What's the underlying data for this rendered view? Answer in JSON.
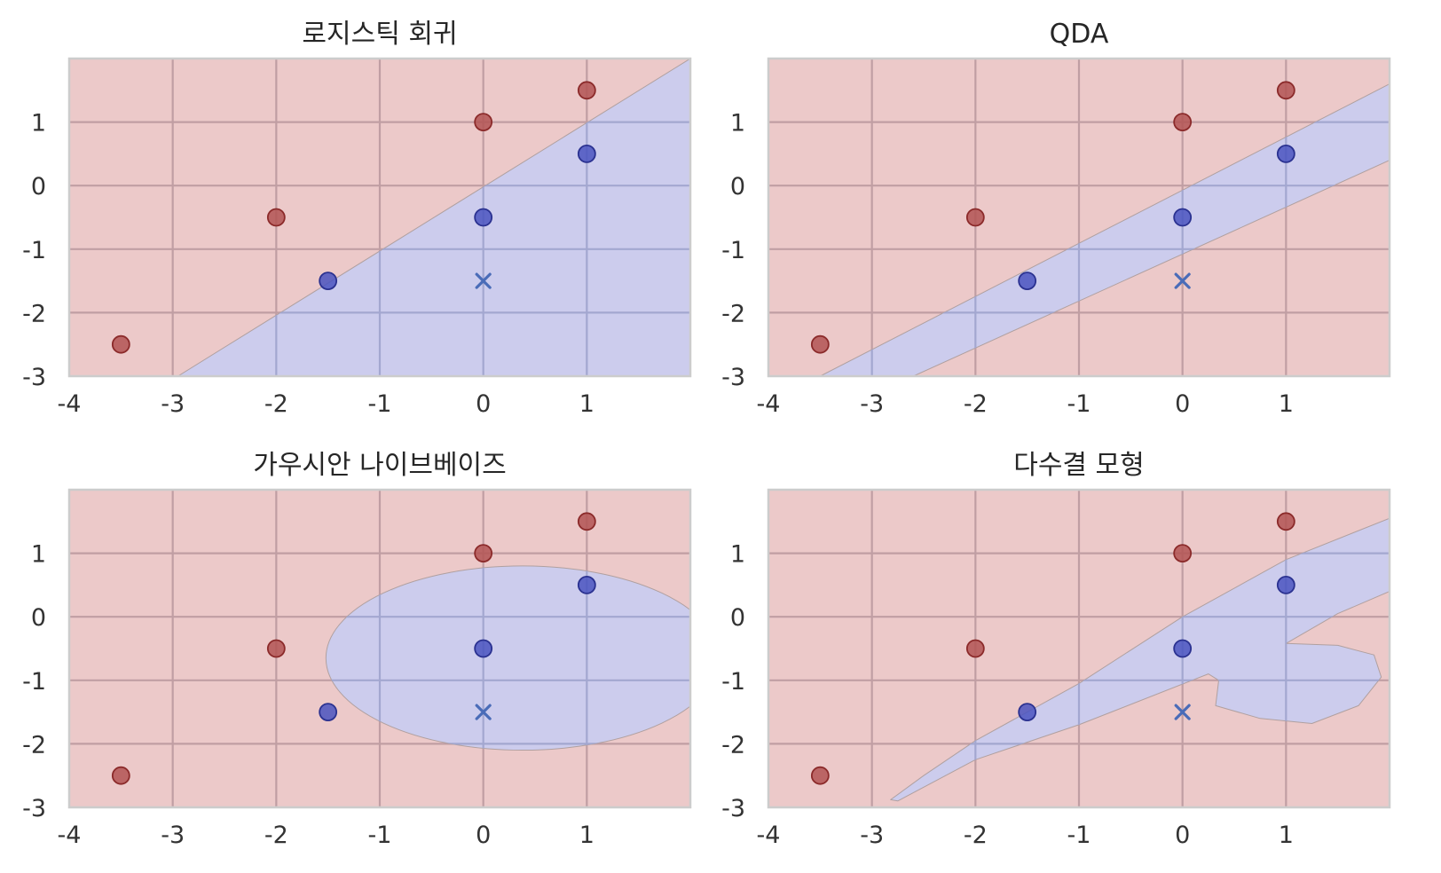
{
  "colors": {
    "class0_region": "#ecc9c9",
    "class1_region": "#c9ccf0",
    "class0_point": "#b35353",
    "class0_point_edge": "#8b2a2a",
    "class1_point": "#4a54c0",
    "class1_point_edge": "#2a3190",
    "grid_on_red": "#c09ea3",
    "grid_on_blue": "#a3a7d0",
    "boundary": "#b0a0a0",
    "test_marker": "#4a6cb8",
    "frame": "#cccccc"
  },
  "chart_data": [
    {
      "type": "scatter",
      "title": "로지스틱 회귀",
      "xlim": [
        -4,
        2
      ],
      "ylim": [
        -3,
        2
      ],
      "xticks": [
        -4,
        -3,
        -2,
        -1,
        0,
        1
      ],
      "yticks": [
        -3,
        -2,
        -1,
        0,
        1
      ],
      "grid": true,
      "decision_region": "half-plane",
      "region_polygon": [
        [
          -2.95,
          -3
        ],
        [
          2,
          -3
        ],
        [
          2,
          2
        ]
      ],
      "class0_points": [
        [
          -3.5,
          -2.5
        ],
        [
          -2,
          -0.5
        ],
        [
          0,
          1
        ],
        [
          1,
          1.5
        ]
      ],
      "class1_points": [
        [
          -1.5,
          -1.5
        ],
        [
          0,
          -0.5
        ],
        [
          1,
          0.5
        ]
      ],
      "test_point": [
        0,
        -1.5
      ]
    },
    {
      "type": "scatter",
      "title": "QDA",
      "xlim": [
        -4,
        2
      ],
      "ylim": [
        -3,
        2
      ],
      "xticks": [
        -4,
        -3,
        -2,
        -1,
        0,
        1
      ],
      "yticks": [
        -3,
        -2,
        -1,
        0,
        1
      ],
      "grid": true,
      "decision_region": "band",
      "region_polygon": [
        [
          -3.5,
          -3
        ],
        [
          2,
          1.6
        ],
        [
          2,
          0.4
        ],
        [
          -2.6,
          -3
        ]
      ],
      "class0_points": [
        [
          -3.5,
          -2.5
        ],
        [
          -2,
          -0.5
        ],
        [
          0,
          1
        ],
        [
          1,
          1.5
        ]
      ],
      "class1_points": [
        [
          -1.5,
          -1.5
        ],
        [
          0,
          -0.5
        ],
        [
          1,
          0.5
        ]
      ],
      "test_point": [
        0,
        -1.5
      ]
    },
    {
      "type": "scatter",
      "title": "가우시안 나이브베이즈",
      "xlim": [
        -4,
        2
      ],
      "ylim": [
        -3,
        2
      ],
      "xticks": [
        -4,
        -3,
        -2,
        -1,
        0,
        1
      ],
      "yticks": [
        -3,
        -2,
        -1,
        0,
        1
      ],
      "grid": true,
      "decision_region": "ellipse",
      "region_ellipse": {
        "cx": 0.38,
        "cy": -0.65,
        "rx": 1.9,
        "ry": 1.45
      },
      "class0_points": [
        [
          -3.5,
          -2.5
        ],
        [
          -2,
          -0.5
        ],
        [
          0,
          1
        ],
        [
          1,
          1.5
        ]
      ],
      "class1_points": [
        [
          -1.5,
          -1.5
        ],
        [
          0,
          -0.5
        ],
        [
          1,
          0.5
        ]
      ],
      "test_point": [
        0,
        -1.5
      ]
    },
    {
      "type": "scatter",
      "title": "다수결 모형",
      "xlim": [
        -4,
        2
      ],
      "ylim": [
        -3,
        2
      ],
      "xticks": [
        -4,
        -3,
        -2,
        -1,
        0,
        1
      ],
      "yticks": [
        -3,
        -2,
        -1,
        0,
        1
      ],
      "grid": true,
      "decision_region": "combined",
      "region_polygon": [
        [
          -2.82,
          -2.88
        ],
        [
          -2.5,
          -2.5
        ],
        [
          -2.0,
          -1.95
        ],
        [
          -1.0,
          -1.05
        ],
        [
          0,
          0
        ],
        [
          1.0,
          0.9
        ],
        [
          2,
          1.55
        ],
        [
          2,
          0.4
        ],
        [
          1.5,
          0.05
        ],
        [
          1.0,
          -0.42
        ],
        [
          1.5,
          -0.45
        ],
        [
          1.85,
          -0.6
        ],
        [
          1.92,
          -0.95
        ],
        [
          1.7,
          -1.4
        ],
        [
          1.25,
          -1.68
        ],
        [
          0.75,
          -1.6
        ],
        [
          0.32,
          -1.4
        ],
        [
          0.35,
          -1.0
        ],
        [
          0.25,
          -0.9
        ],
        [
          -1.0,
          -1.7
        ],
        [
          -2.0,
          -2.25
        ],
        [
          -2.75,
          -2.9
        ]
      ],
      "class0_points": [
        [
          -3.5,
          -2.5
        ],
        [
          -2,
          -0.5
        ],
        [
          0,
          1
        ],
        [
          1,
          1.5
        ]
      ],
      "class1_points": [
        [
          -1.5,
          -1.5
        ],
        [
          0,
          -0.5
        ],
        [
          1,
          0.5
        ]
      ],
      "test_point": [
        0,
        -1.5
      ]
    }
  ]
}
